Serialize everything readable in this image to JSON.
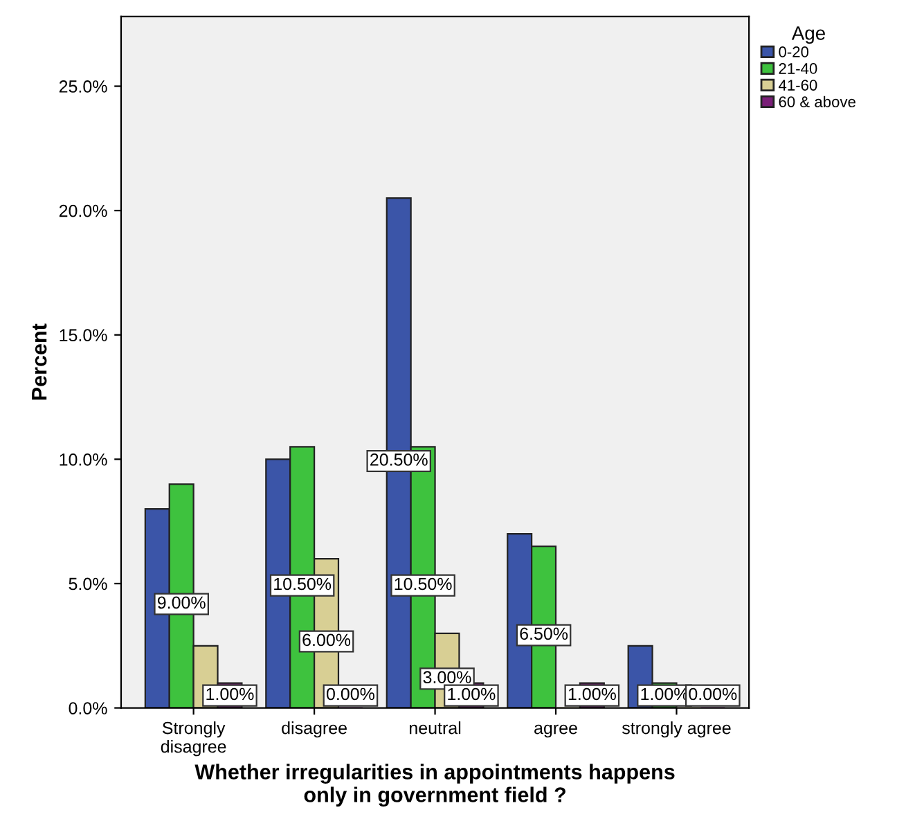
{
  "chart_data": {
    "type": "bar",
    "xlabel": "Whether irregularities in appointments happens\nonly in government field ?",
    "ylabel": "Percent",
    "legend_title": "Age",
    "categories": [
      "Strongly\ndisagree",
      "disagree",
      "neutral",
      "agree",
      "strongly agree"
    ],
    "series": [
      {
        "name": "0-20",
        "color": "#3b55a8",
        "values": [
          8,
          10,
          20.5,
          7,
          2.5
        ],
        "value_labels": [
          null,
          null,
          "20.50%",
          null,
          null
        ]
      },
      {
        "name": "21-40",
        "color": "#3ec23e",
        "values": [
          9,
          10.5,
          10.5,
          6.5,
          1
        ],
        "value_labels": [
          "9.00%",
          "10.50%",
          "10.50%",
          "6.50%",
          "1.00%"
        ]
      },
      {
        "name": "41-60",
        "color": "#d8cf94",
        "values": [
          2.5,
          6,
          3,
          0,
          0
        ],
        "value_labels": [
          null,
          "6.00%",
          "3.00%",
          null,
          null
        ]
      },
      {
        "name": "60 & above",
        "color": "#7a1f78",
        "values": [
          1,
          0,
          1,
          1,
          0
        ],
        "value_labels": [
          "1.00%",
          "0.00%",
          "1.00%",
          "1.00%",
          "0.00%"
        ]
      }
    ],
    "ylim": [
      0,
      27.8
    ],
    "yticks": [
      {
        "value": 0,
        "label": "0.0%"
      },
      {
        "value": 5,
        "label": "5.0%"
      },
      {
        "value": 10,
        "label": "10.0%"
      },
      {
        "value": 15,
        "label": "15.0%"
      },
      {
        "value": 20,
        "label": "20.0%"
      },
      {
        "value": 25,
        "label": "25.0%"
      }
    ],
    "legend": "top right",
    "grid": false
  }
}
